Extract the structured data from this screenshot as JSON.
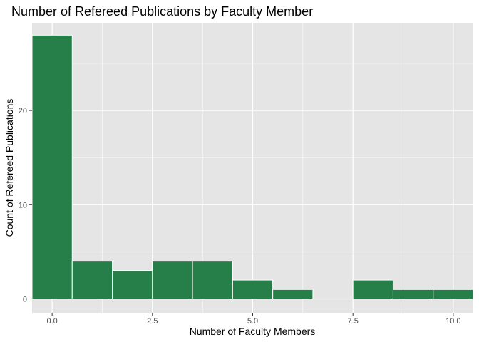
{
  "chart_data": {
    "type": "bar",
    "title": "Number of Refereed Publications by Faculty Member",
    "xlabel": "Number of Faculty Members",
    "ylabel": "Count of Refereed Publications",
    "x_bins": [
      0,
      1,
      2,
      3,
      4,
      5,
      6,
      7,
      8,
      9,
      10
    ],
    "values": [
      28,
      4,
      3,
      4,
      4,
      2,
      1,
      0,
      2,
      1,
      1
    ],
    "bin_width": 1,
    "xlim": [
      -0.5,
      10.5
    ],
    "ylim": [
      0,
      28
    ],
    "x_ticks": [
      0.0,
      2.5,
      5.0,
      7.5,
      10.0
    ],
    "x_tick_labels": [
      "0.0",
      "2.5",
      "5.0",
      "7.5",
      "10.0"
    ],
    "y_ticks": [
      0,
      10,
      20
    ],
    "y_tick_labels": [
      "0",
      "10",
      "20"
    ],
    "grid": true,
    "colors": {
      "bar_fill": "#267F48",
      "bar_stroke": "#ffffff",
      "panel_bg": "#E5E5E5",
      "grid_major": "#ffffff",
      "tick_text": "#4d4d4d"
    }
  }
}
